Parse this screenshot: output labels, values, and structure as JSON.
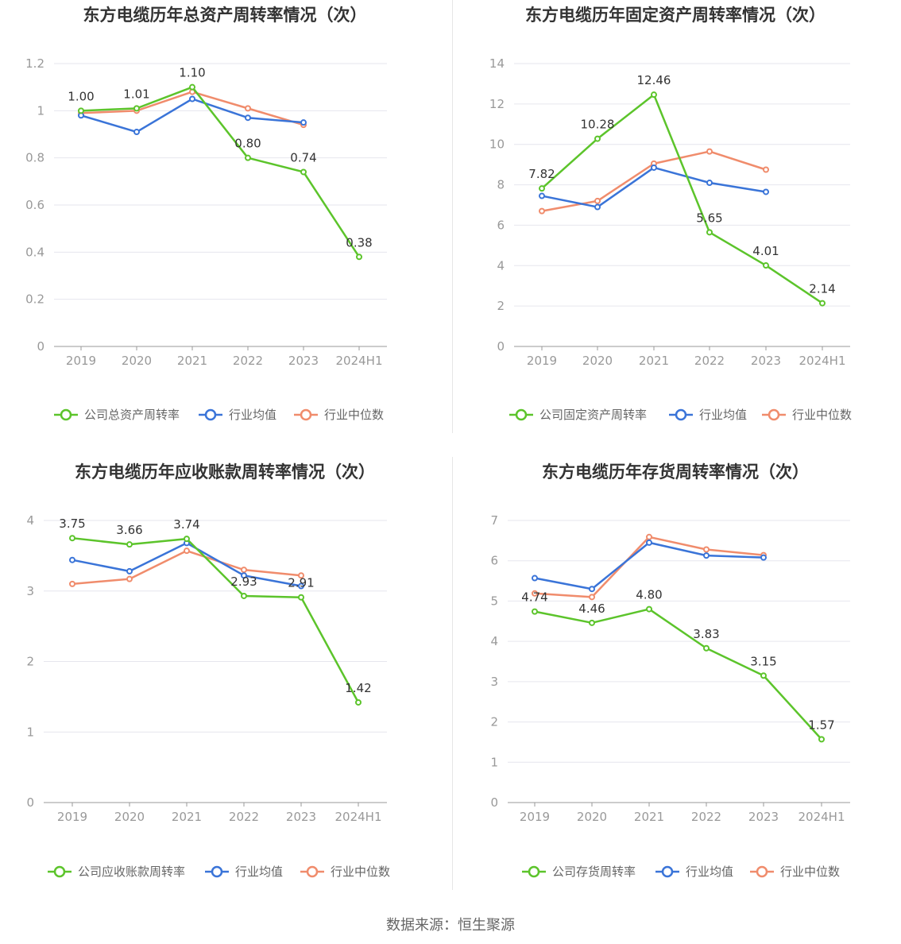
{
  "colors": {
    "company": "#5cc42b",
    "industry_avg": "#3a74d8",
    "industry_median": "#f08c6c",
    "grid": "#e6e6ee",
    "axis": "#999999",
    "tick_text": "#999999",
    "title": "#333333",
    "label": "#333333",
    "legend_text": "#666666"
  },
  "source": "数据来源：恒生聚源",
  "chart_data": [
    {
      "type": "line",
      "title": "东方电缆历年总资产周转率情况（次）",
      "categories": [
        "2019",
        "2020",
        "2021",
        "2022",
        "2023",
        "2024H1"
      ],
      "yticks": [
        "0",
        "0.2",
        "0.4",
        "0.6",
        "0.8",
        "1",
        "1.2"
      ],
      "ylim": [
        0,
        1.2
      ],
      "series": [
        {
          "name": "公司总资产周转率",
          "key": "company",
          "values": [
            1.0,
            1.01,
            1.1,
            0.8,
            0.74,
            0.38
          ],
          "labels": [
            "1.00",
            "1.01",
            "1.10",
            "0.80",
            "0.74",
            "0.38"
          ]
        },
        {
          "name": "行业均值",
          "key": "industry_avg",
          "values": [
            0.98,
            0.91,
            1.05,
            0.97,
            0.95,
            null
          ]
        },
        {
          "name": "行业中位数",
          "key": "industry_median",
          "values": [
            0.99,
            1.0,
            1.08,
            1.01,
            0.94,
            null
          ]
        }
      ],
      "legend": "bottom"
    },
    {
      "type": "line",
      "title": "东方电缆历年固定资产周转率情况（次）",
      "categories": [
        "2019",
        "2020",
        "2021",
        "2022",
        "2023",
        "2024H1"
      ],
      "yticks": [
        "0",
        "2",
        "4",
        "6",
        "8",
        "10",
        "12",
        "14"
      ],
      "ylim": [
        0,
        14
      ],
      "series": [
        {
          "name": "公司固定资产周转率",
          "key": "company",
          "values": [
            7.82,
            10.28,
            12.46,
            5.65,
            4.01,
            2.14
          ],
          "labels": [
            "7.82",
            "10.28",
            "12.46",
            "5.65",
            "4.01",
            "2.14"
          ]
        },
        {
          "name": "行业均值",
          "key": "industry_avg",
          "values": [
            7.45,
            6.9,
            8.85,
            8.1,
            7.65,
            null
          ]
        },
        {
          "name": "行业中位数",
          "key": "industry_median",
          "values": [
            6.7,
            7.2,
            9.05,
            9.65,
            8.75,
            null
          ]
        }
      ],
      "legend": "bottom"
    },
    {
      "type": "line",
      "title": "东方电缆历年应收账款周转率情况（次）",
      "categories": [
        "2019",
        "2020",
        "2021",
        "2022",
        "2023",
        "2024H1"
      ],
      "yticks": [
        "0",
        "1",
        "2",
        "3",
        "4"
      ],
      "ylim": [
        0,
        4
      ],
      "series": [
        {
          "name": "公司应收账款周转率",
          "key": "company",
          "values": [
            3.75,
            3.66,
            3.74,
            2.93,
            2.91,
            1.42
          ],
          "labels": [
            "3.75",
            "3.66",
            "3.74",
            "2.93",
            "2.91",
            "1.42"
          ]
        },
        {
          "name": "行业均值",
          "key": "industry_avg",
          "values": [
            3.44,
            3.28,
            3.68,
            3.22,
            3.07,
            null
          ]
        },
        {
          "name": "行业中位数",
          "key": "industry_median",
          "values": [
            3.1,
            3.17,
            3.57,
            3.3,
            3.22,
            null
          ]
        }
      ],
      "legend": "bottom"
    },
    {
      "type": "line",
      "title": "东方电缆历年存货周转率情况（次）",
      "categories": [
        "2019",
        "2020",
        "2021",
        "2022",
        "2023",
        "2024H1"
      ],
      "yticks": [
        "0",
        "1",
        "2",
        "3",
        "4",
        "5",
        "6",
        "7"
      ],
      "ylim": [
        0,
        7
      ],
      "series": [
        {
          "name": "公司存货周转率",
          "key": "company",
          "values": [
            4.74,
            4.46,
            4.8,
            3.83,
            3.15,
            1.57
          ],
          "labels": [
            "4.74",
            "4.46",
            "4.80",
            "3.83",
            "3.15",
            "1.57"
          ]
        },
        {
          "name": "行业均值",
          "key": "industry_avg",
          "values": [
            5.57,
            5.3,
            6.45,
            6.13,
            6.08,
            null
          ]
        },
        {
          "name": "行业中位数",
          "key": "industry_median",
          "values": [
            5.19,
            5.1,
            6.59,
            6.28,
            6.14,
            null
          ]
        }
      ],
      "legend": "bottom"
    }
  ]
}
